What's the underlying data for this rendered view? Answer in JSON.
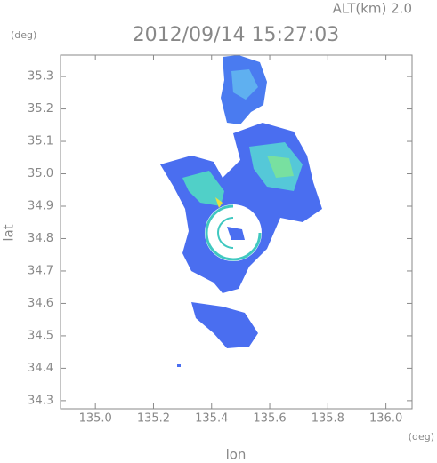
{
  "chart_data": {
    "type": "radar-map",
    "title": "2012/09/14 15:27:03",
    "altitude_label": "ALT(km) 2.0",
    "x_label": "lon",
    "y_label": "lat",
    "x_unit": "(deg)",
    "y_unit": "(deg)",
    "xlim": [
      134.88,
      136.09
    ],
    "xticks": [
      {
        "value": 135,
        "label": "135.0"
      },
      135.2,
      135.4,
      135.6,
      135.8,
      {
        "value": 136,
        "label": "136.0"
      }
    ],
    "ylim": [
      34.275,
      35.366
    ],
    "yticks": [
      34.3,
      34.4,
      34.5,
      34.6,
      34.7,
      34.8,
      34.9,
      {
        "value": 35,
        "label": "35.0"
      },
      35.1,
      35.2,
      35.3
    ]
  }
}
